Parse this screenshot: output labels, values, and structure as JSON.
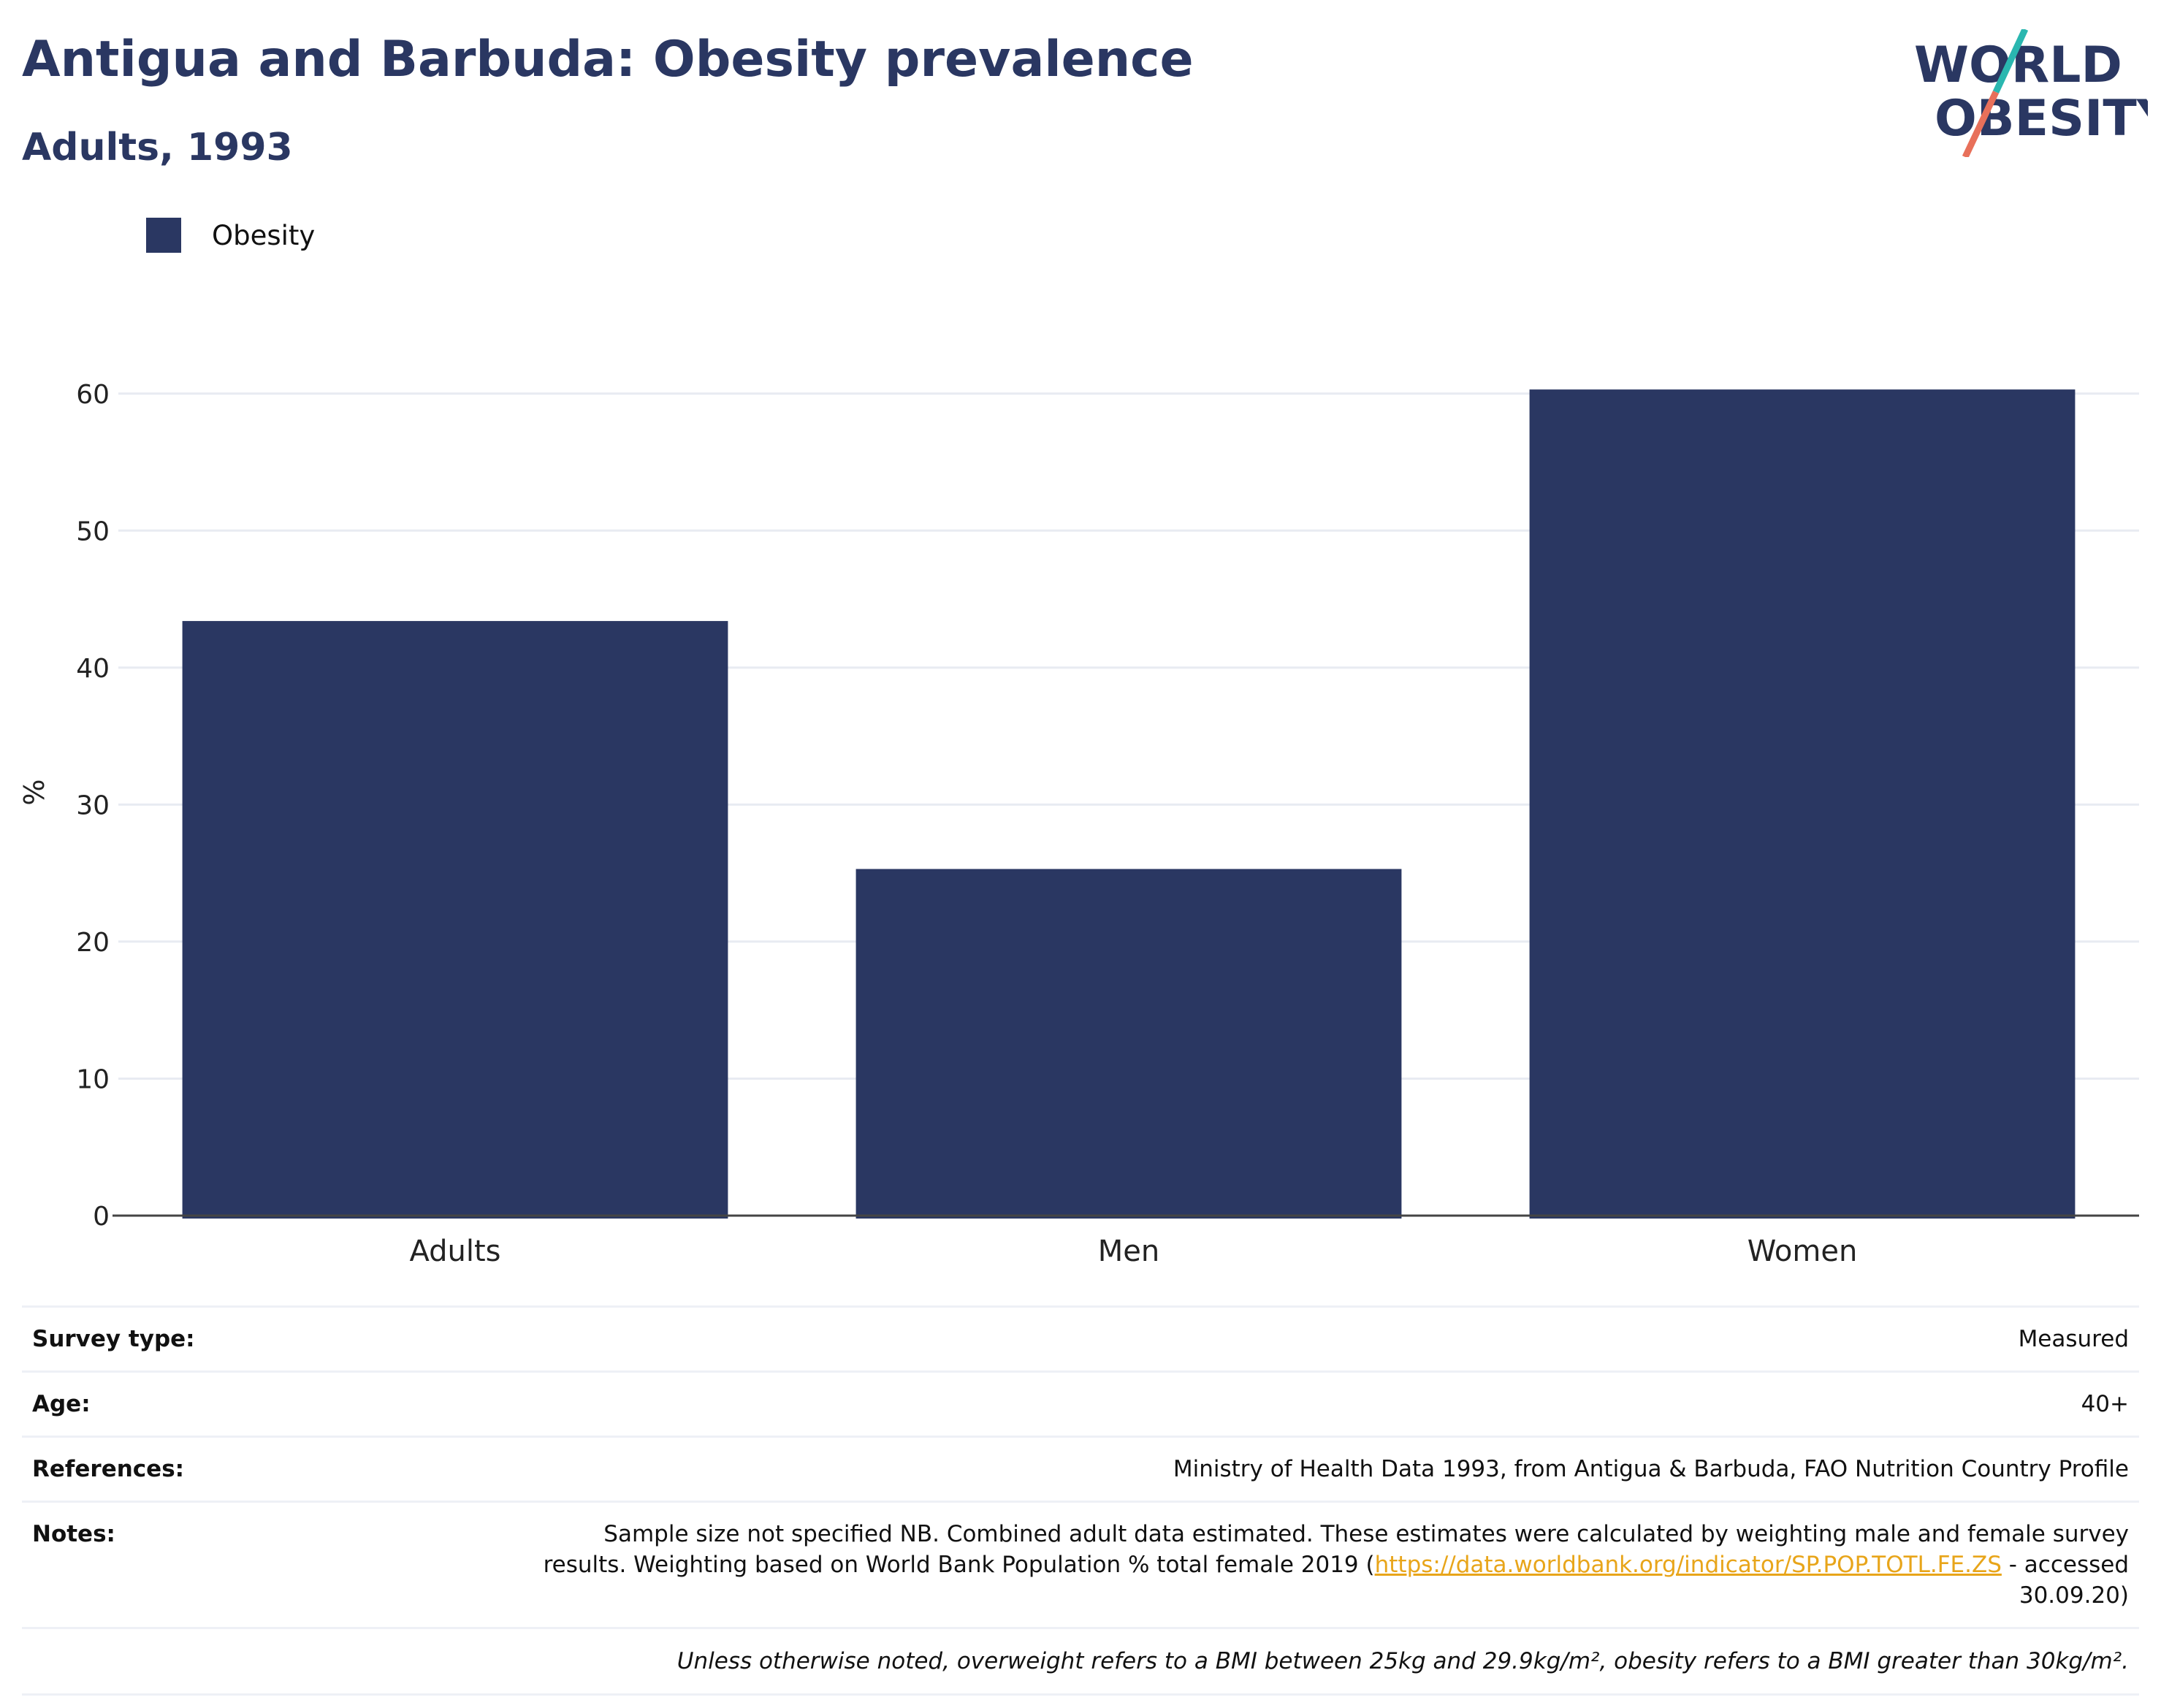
{
  "header": {
    "title": "Antigua and Barbuda: Obesity prevalence",
    "subtitle": "Adults, 1993"
  },
  "logo": {
    "line1": "WORLD",
    "line2": "OBESITY",
    "colors": {
      "text": "#2a3762",
      "slash_top": "#2ab7b0",
      "slash_bottom": "#e8705a"
    }
  },
  "legend": {
    "label": "Obesity",
    "color": "#2a3762"
  },
  "chart_data": {
    "type": "bar",
    "categories": [
      "Adults",
      "Men",
      "Women"
    ],
    "series": [
      {
        "name": "Obesity",
        "values": [
          43.4,
          25.3,
          60.3
        ]
      }
    ],
    "xlabel": "",
    "ylabel": "%",
    "ylim": [
      0,
      65
    ],
    "yticks": [
      0,
      10,
      20,
      30,
      40,
      50,
      60
    ],
    "grid": true,
    "legend_position": "top-left",
    "bar_color": "#2a3762"
  },
  "info": {
    "survey_type": {
      "label": "Survey type:",
      "value": "Measured"
    },
    "age": {
      "label": "Age:",
      "value": "40+"
    },
    "references": {
      "label": "References:",
      "value": "Ministry of Health Data 1993, from Antigua & Barbuda, FAO Nutrition Country Profile"
    },
    "notes": {
      "label": "Notes:",
      "text_before": "Sample size not specified NB. Combined adult data estimated. These estimates were calculated by weighting male and female survey results. Weighting based on World Bank Population % total female 2019 (",
      "link": "https://data.worldbank.org/indicator/SP.POP.TOTL.FE.ZS",
      "text_after": " - accessed 30.09.20)"
    },
    "footnote": "Unless otherwise noted, overweight refers to a BMI between 25kg and 29.9kg/m², obesity refers to a BMI greater than 30kg/m²."
  }
}
